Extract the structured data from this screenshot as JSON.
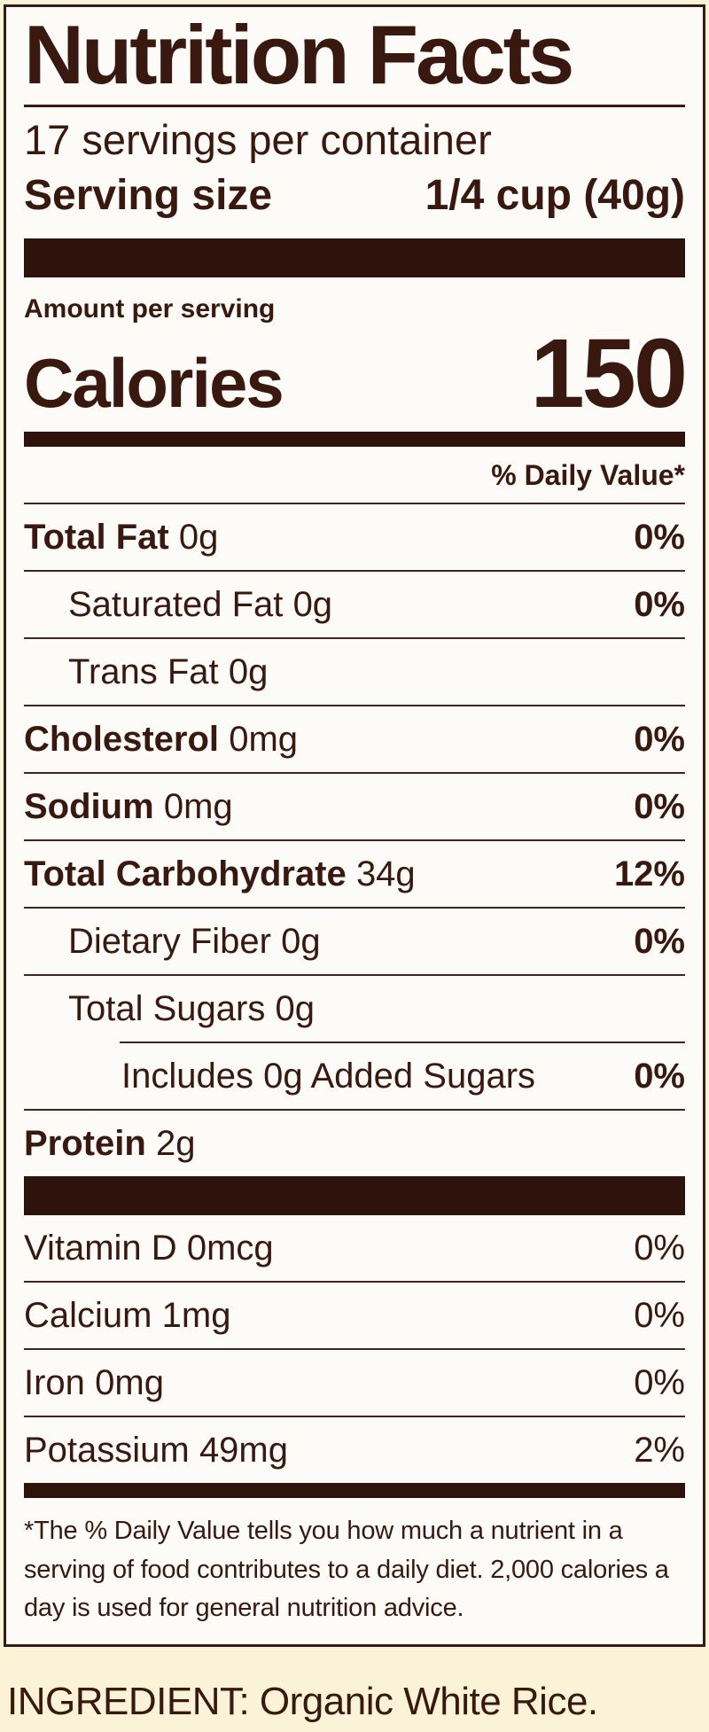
{
  "colors": {
    "ink": "#38180f",
    "bar": "#2e130d",
    "rule": "#45231b",
    "label_bg": "#fcfbf7",
    "page_bg": "#faf3d8"
  },
  "label": {
    "title": "Nutrition Facts",
    "servings_per_container": "17 servings per container",
    "serving_size_label": "Serving size",
    "serving_size_value": "1/4 cup (40g)",
    "amount_per_serving": "Amount per serving",
    "calories_label": "Calories",
    "calories_value": "150",
    "daily_value_header": "% Daily Value*",
    "rows": [
      {
        "name": "Total Fat",
        "amount": "0g",
        "percent": "0%"
      },
      {
        "name": "Saturated Fat",
        "amount": "0g",
        "percent": "0%"
      },
      {
        "name": "Trans Fat",
        "amount": "0g",
        "percent": ""
      },
      {
        "name": "Cholesterol",
        "amount": "0mg",
        "percent": "0%"
      },
      {
        "name": "Sodium",
        "amount": "0mg",
        "percent": "0%"
      },
      {
        "name": "Total Carbohydrate",
        "amount": "34g",
        "percent": "12%"
      },
      {
        "name": "Dietary Fiber",
        "amount": "0g",
        "percent": "0%"
      },
      {
        "name": "Total Sugars",
        "amount": "0g",
        "percent": ""
      },
      {
        "name": "Includes 0g Added Sugars",
        "amount": "",
        "percent": "0%"
      },
      {
        "name": "Protein",
        "amount": "2g",
        "percent": ""
      }
    ],
    "vitamins": [
      {
        "name": "Vitamin D",
        "amount": "0mcg",
        "percent": "0%"
      },
      {
        "name": "Calcium",
        "amount": "1mg",
        "percent": "0%"
      },
      {
        "name": "Iron",
        "amount": "0mg",
        "percent": "0%"
      },
      {
        "name": "Potassium",
        "amount": "49mg",
        "percent": "2%"
      }
    ],
    "footnote": "*The % Daily Value tells you how much a nutrient in a serving of food contributes to a daily diet. 2,000 calories a day is used for general nutrition advice."
  },
  "ingredient": "INGREDIENT: Organic White Rice."
}
